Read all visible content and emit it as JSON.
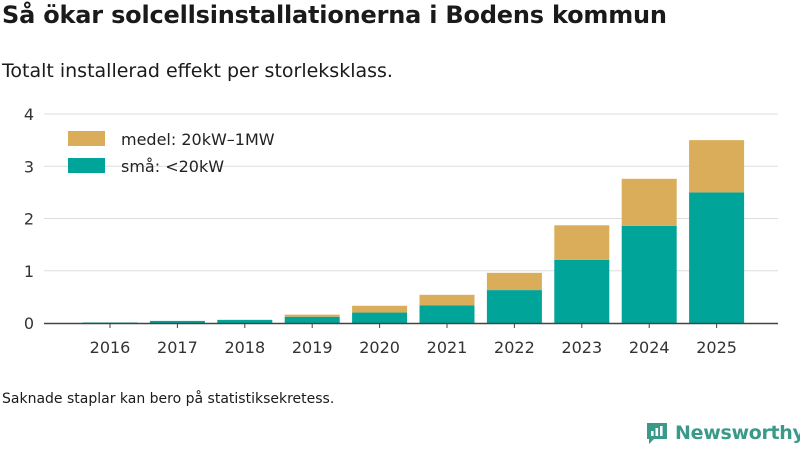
{
  "chart_data": {
    "type": "bar",
    "stacked": true,
    "title": "Så ökar solcellsinstallationerna i Bodens kommun",
    "subtitle": "Totalt installerad effekt per storleksklass.",
    "categories": [
      "2016",
      "2017",
      "2018",
      "2019",
      "2020",
      "2021",
      "2022",
      "2023",
      "2024",
      "2025"
    ],
    "series": [
      {
        "name": "små: <20kW",
        "color": "#00a499",
        "values": [
          0.01,
          0.04,
          0.06,
          0.12,
          0.2,
          0.34,
          0.63,
          1.21,
          1.86,
          2.5
        ]
      },
      {
        "name": "medel: 20kW–1MW",
        "color": "#d9ad5a",
        "values": [
          0,
          0,
          0,
          0.04,
          0.13,
          0.2,
          0.33,
          0.66,
          0.9,
          1.0
        ]
      }
    ],
    "ylim": [
      0,
      4
    ],
    "yticks": [
      0,
      1,
      2,
      3,
      4
    ],
    "xlabel": "",
    "ylabel": "",
    "grid": true,
    "legend_position": "top-left"
  },
  "footnote": "Saknade staplar kan bero på statistiksekretess.",
  "brand": {
    "name": "Newsworthy"
  }
}
